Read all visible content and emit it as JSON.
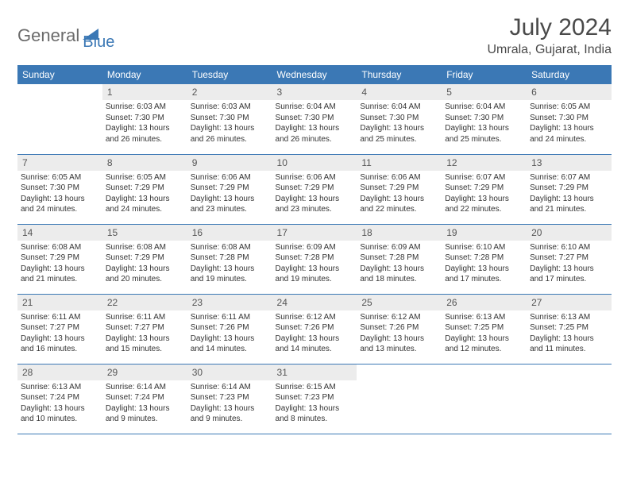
{
  "logo": {
    "part1": "General",
    "part2": "Blue"
  },
  "title": "July 2024",
  "location": "Umrala, Gujarat, India",
  "colors": {
    "header_bg": "#3b78b5",
    "header_text": "#ffffff",
    "daynum_bg": "#ececec",
    "border": "#3b78b5",
    "body_text": "#333333",
    "title_text": "#4a4a4a"
  },
  "typography": {
    "title_fontsize": 30,
    "location_fontsize": 16,
    "dayheader_fontsize": 12,
    "daynum_fontsize": 12,
    "cell_fontsize": 10
  },
  "day_headers": [
    "Sunday",
    "Monday",
    "Tuesday",
    "Wednesday",
    "Thursday",
    "Friday",
    "Saturday"
  ],
  "weeks": [
    [
      {
        "day": "",
        "sunrise": "",
        "sunset": "",
        "daylight1": "",
        "daylight2": ""
      },
      {
        "day": "1",
        "sunrise": "Sunrise: 6:03 AM",
        "sunset": "Sunset: 7:30 PM",
        "daylight1": "Daylight: 13 hours",
        "daylight2": "and 26 minutes."
      },
      {
        "day": "2",
        "sunrise": "Sunrise: 6:03 AM",
        "sunset": "Sunset: 7:30 PM",
        "daylight1": "Daylight: 13 hours",
        "daylight2": "and 26 minutes."
      },
      {
        "day": "3",
        "sunrise": "Sunrise: 6:04 AM",
        "sunset": "Sunset: 7:30 PM",
        "daylight1": "Daylight: 13 hours",
        "daylight2": "and 26 minutes."
      },
      {
        "day": "4",
        "sunrise": "Sunrise: 6:04 AM",
        "sunset": "Sunset: 7:30 PM",
        "daylight1": "Daylight: 13 hours",
        "daylight2": "and 25 minutes."
      },
      {
        "day": "5",
        "sunrise": "Sunrise: 6:04 AM",
        "sunset": "Sunset: 7:30 PM",
        "daylight1": "Daylight: 13 hours",
        "daylight2": "and 25 minutes."
      },
      {
        "day": "6",
        "sunrise": "Sunrise: 6:05 AM",
        "sunset": "Sunset: 7:30 PM",
        "daylight1": "Daylight: 13 hours",
        "daylight2": "and 24 minutes."
      }
    ],
    [
      {
        "day": "7",
        "sunrise": "Sunrise: 6:05 AM",
        "sunset": "Sunset: 7:30 PM",
        "daylight1": "Daylight: 13 hours",
        "daylight2": "and 24 minutes."
      },
      {
        "day": "8",
        "sunrise": "Sunrise: 6:05 AM",
        "sunset": "Sunset: 7:29 PM",
        "daylight1": "Daylight: 13 hours",
        "daylight2": "and 24 minutes."
      },
      {
        "day": "9",
        "sunrise": "Sunrise: 6:06 AM",
        "sunset": "Sunset: 7:29 PM",
        "daylight1": "Daylight: 13 hours",
        "daylight2": "and 23 minutes."
      },
      {
        "day": "10",
        "sunrise": "Sunrise: 6:06 AM",
        "sunset": "Sunset: 7:29 PM",
        "daylight1": "Daylight: 13 hours",
        "daylight2": "and 23 minutes."
      },
      {
        "day": "11",
        "sunrise": "Sunrise: 6:06 AM",
        "sunset": "Sunset: 7:29 PM",
        "daylight1": "Daylight: 13 hours",
        "daylight2": "and 22 minutes."
      },
      {
        "day": "12",
        "sunrise": "Sunrise: 6:07 AM",
        "sunset": "Sunset: 7:29 PM",
        "daylight1": "Daylight: 13 hours",
        "daylight2": "and 22 minutes."
      },
      {
        "day": "13",
        "sunrise": "Sunrise: 6:07 AM",
        "sunset": "Sunset: 7:29 PM",
        "daylight1": "Daylight: 13 hours",
        "daylight2": "and 21 minutes."
      }
    ],
    [
      {
        "day": "14",
        "sunrise": "Sunrise: 6:08 AM",
        "sunset": "Sunset: 7:29 PM",
        "daylight1": "Daylight: 13 hours",
        "daylight2": "and 21 minutes."
      },
      {
        "day": "15",
        "sunrise": "Sunrise: 6:08 AM",
        "sunset": "Sunset: 7:29 PM",
        "daylight1": "Daylight: 13 hours",
        "daylight2": "and 20 minutes."
      },
      {
        "day": "16",
        "sunrise": "Sunrise: 6:08 AM",
        "sunset": "Sunset: 7:28 PM",
        "daylight1": "Daylight: 13 hours",
        "daylight2": "and 19 minutes."
      },
      {
        "day": "17",
        "sunrise": "Sunrise: 6:09 AM",
        "sunset": "Sunset: 7:28 PM",
        "daylight1": "Daylight: 13 hours",
        "daylight2": "and 19 minutes."
      },
      {
        "day": "18",
        "sunrise": "Sunrise: 6:09 AM",
        "sunset": "Sunset: 7:28 PM",
        "daylight1": "Daylight: 13 hours",
        "daylight2": "and 18 minutes."
      },
      {
        "day": "19",
        "sunrise": "Sunrise: 6:10 AM",
        "sunset": "Sunset: 7:28 PM",
        "daylight1": "Daylight: 13 hours",
        "daylight2": "and 17 minutes."
      },
      {
        "day": "20",
        "sunrise": "Sunrise: 6:10 AM",
        "sunset": "Sunset: 7:27 PM",
        "daylight1": "Daylight: 13 hours",
        "daylight2": "and 17 minutes."
      }
    ],
    [
      {
        "day": "21",
        "sunrise": "Sunrise: 6:11 AM",
        "sunset": "Sunset: 7:27 PM",
        "daylight1": "Daylight: 13 hours",
        "daylight2": "and 16 minutes."
      },
      {
        "day": "22",
        "sunrise": "Sunrise: 6:11 AM",
        "sunset": "Sunset: 7:27 PM",
        "daylight1": "Daylight: 13 hours",
        "daylight2": "and 15 minutes."
      },
      {
        "day": "23",
        "sunrise": "Sunrise: 6:11 AM",
        "sunset": "Sunset: 7:26 PM",
        "daylight1": "Daylight: 13 hours",
        "daylight2": "and 14 minutes."
      },
      {
        "day": "24",
        "sunrise": "Sunrise: 6:12 AM",
        "sunset": "Sunset: 7:26 PM",
        "daylight1": "Daylight: 13 hours",
        "daylight2": "and 14 minutes."
      },
      {
        "day": "25",
        "sunrise": "Sunrise: 6:12 AM",
        "sunset": "Sunset: 7:26 PM",
        "daylight1": "Daylight: 13 hours",
        "daylight2": "and 13 minutes."
      },
      {
        "day": "26",
        "sunrise": "Sunrise: 6:13 AM",
        "sunset": "Sunset: 7:25 PM",
        "daylight1": "Daylight: 13 hours",
        "daylight2": "and 12 minutes."
      },
      {
        "day": "27",
        "sunrise": "Sunrise: 6:13 AM",
        "sunset": "Sunset: 7:25 PM",
        "daylight1": "Daylight: 13 hours",
        "daylight2": "and 11 minutes."
      }
    ],
    [
      {
        "day": "28",
        "sunrise": "Sunrise: 6:13 AM",
        "sunset": "Sunset: 7:24 PM",
        "daylight1": "Daylight: 13 hours",
        "daylight2": "and 10 minutes."
      },
      {
        "day": "29",
        "sunrise": "Sunrise: 6:14 AM",
        "sunset": "Sunset: 7:24 PM",
        "daylight1": "Daylight: 13 hours",
        "daylight2": "and 9 minutes."
      },
      {
        "day": "30",
        "sunrise": "Sunrise: 6:14 AM",
        "sunset": "Sunset: 7:23 PM",
        "daylight1": "Daylight: 13 hours",
        "daylight2": "and 9 minutes."
      },
      {
        "day": "31",
        "sunrise": "Sunrise: 6:15 AM",
        "sunset": "Sunset: 7:23 PM",
        "daylight1": "Daylight: 13 hours",
        "daylight2": "and 8 minutes."
      },
      {
        "day": "",
        "sunrise": "",
        "sunset": "",
        "daylight1": "",
        "daylight2": ""
      },
      {
        "day": "",
        "sunrise": "",
        "sunset": "",
        "daylight1": "",
        "daylight2": ""
      },
      {
        "day": "",
        "sunrise": "",
        "sunset": "",
        "daylight1": "",
        "daylight2": ""
      }
    ]
  ]
}
